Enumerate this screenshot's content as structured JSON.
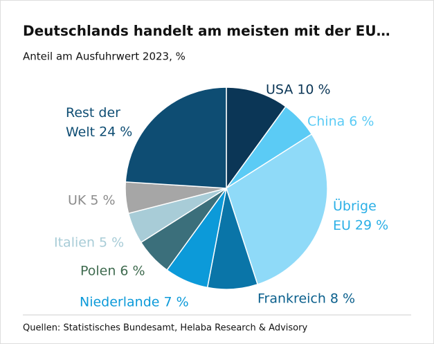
{
  "chart_data": {
    "type": "pie",
    "title": "Deutschlands handelt am meisten mit der EU…",
    "subtitle": "Anteil am Ausfuhrwert 2023, %",
    "source": "Quellen: Statistisches Bundesamt, Helaba Research & Advisory",
    "categories": [
      "USA",
      "China",
      "Übrige EU",
      "Frankreich",
      "Niederlande",
      "Polen",
      "Italien",
      "UK",
      "Rest der Welt"
    ],
    "values": [
      10,
      6,
      29,
      8,
      7,
      6,
      5,
      5,
      24
    ],
    "value_labels": [
      "10 %",
      "6 %",
      "29 %",
      "8 %",
      "7 %",
      "6 %",
      "5 %",
      "5 %",
      "24 %"
    ],
    "colors": [
      "#0b3656",
      "#5bcbf5",
      "#8fdaf8",
      "#0a75a8",
      "#0c9ad9",
      "#3b6f7b",
      "#a8ccd7",
      "#a6a6a6",
      "#0e4d73"
    ],
    "label_colors": [
      "#0b3656",
      "#5bcbf5",
      "#2aafe6",
      "#0a5f8c",
      "#0c9ad9",
      "#3f6b4f",
      "#a8ccd7",
      "#8c8c8c",
      "#0e4d73"
    ]
  }
}
